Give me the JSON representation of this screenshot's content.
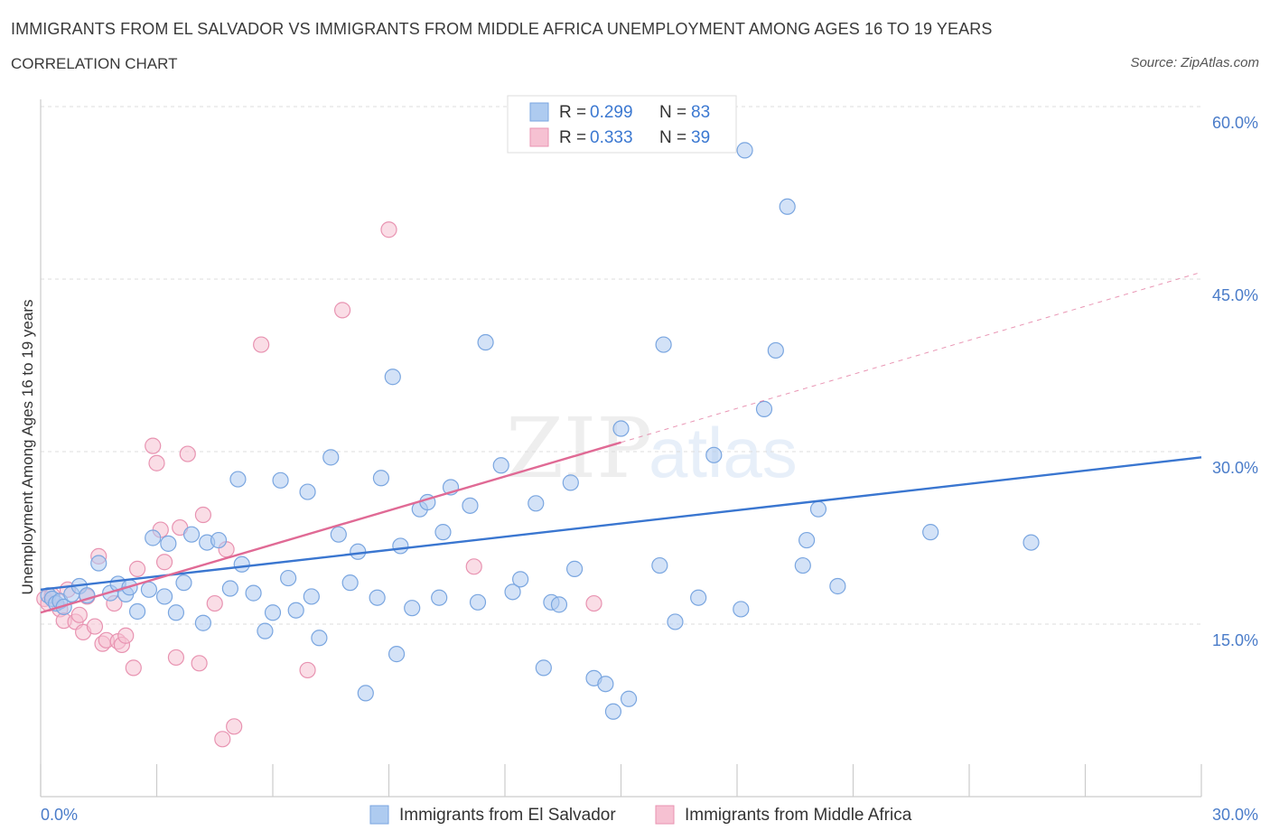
{
  "header": {
    "title": "IMMIGRANTS FROM EL SALVADOR VS IMMIGRANTS FROM MIDDLE AFRICA UNEMPLOYMENT AMONG AGES 16 TO 19 YEARS",
    "subtitle": "CORRELATION CHART",
    "source": "Source: ZipAtlas.com"
  },
  "legend_top": {
    "r_label": "R =",
    "n_label": "N =",
    "rows": [
      {
        "r": "0.299",
        "n": "83"
      },
      {
        "r": "0.333",
        "n": "39"
      }
    ]
  },
  "legend_bottom": {
    "items": [
      "Immigrants from El Salvador",
      "Immigrants from Middle Africa"
    ]
  },
  "watermark": {
    "zip": "ZIP",
    "atlas": "atlas"
  },
  "colors": {
    "blue_fill": "#aecbf0",
    "blue_stroke": "#7aa6e0",
    "blue_line": "#3a76d0",
    "pink_fill": "#f6c1d2",
    "pink_stroke": "#e893b1",
    "pink_line": "#e06a95",
    "grid": "#dddddd",
    "tick_text": "#4a7cc9"
  },
  "chart_data": {
    "type": "scatter",
    "xlabel": "",
    "ylabel": "Unemployment Among Ages 16 to 19 years",
    "xlim": [
      0,
      30
    ],
    "ylim": [
      0,
      60
    ],
    "x_tick_labels": [
      "0.0%",
      "30.0%"
    ],
    "y_tick_labels": [
      "15.0%",
      "30.0%",
      "45.0%",
      "60.0%"
    ],
    "y_ticks": [
      15,
      30,
      45,
      60
    ],
    "grid": true,
    "series": [
      {
        "name": "Immigrants from El Salvador",
        "r": 0.299,
        "n": 83,
        "trend": {
          "x0": 0,
          "y0": 18.0,
          "x1": 30,
          "y1": 29.5,
          "dashed_to": null
        },
        "points": [
          [
            0.2,
            17.5
          ],
          [
            0.3,
            17.2
          ],
          [
            0.4,
            16.8
          ],
          [
            0.5,
            17.0
          ],
          [
            0.6,
            16.5
          ],
          [
            0.8,
            17.6
          ],
          [
            1.0,
            18.3
          ],
          [
            1.2,
            17.5
          ],
          [
            1.5,
            20.3
          ],
          [
            1.8,
            17.7
          ],
          [
            2.0,
            18.5
          ],
          [
            2.2,
            17.6
          ],
          [
            2.3,
            18.2
          ],
          [
            2.5,
            16.1
          ],
          [
            2.8,
            18.0
          ],
          [
            2.9,
            22.5
          ],
          [
            3.2,
            17.4
          ],
          [
            3.3,
            22.0
          ],
          [
            3.5,
            16.0
          ],
          [
            3.7,
            18.6
          ],
          [
            3.9,
            22.8
          ],
          [
            4.2,
            15.1
          ],
          [
            4.3,
            22.1
          ],
          [
            4.6,
            22.3
          ],
          [
            4.9,
            18.1
          ],
          [
            5.1,
            27.6
          ],
          [
            5.2,
            20.2
          ],
          [
            5.5,
            17.7
          ],
          [
            5.8,
            14.4
          ],
          [
            6.0,
            16.0
          ],
          [
            6.2,
            27.5
          ],
          [
            6.4,
            19.0
          ],
          [
            6.6,
            16.2
          ],
          [
            6.9,
            26.5
          ],
          [
            7.0,
            17.4
          ],
          [
            7.2,
            13.8
          ],
          [
            7.5,
            29.5
          ],
          [
            7.7,
            22.8
          ],
          [
            8.0,
            18.6
          ],
          [
            8.2,
            21.3
          ],
          [
            8.4,
            9.0
          ],
          [
            8.7,
            17.3
          ],
          [
            8.8,
            27.7
          ],
          [
            9.1,
            36.5
          ],
          [
            9.2,
            12.4
          ],
          [
            9.3,
            21.8
          ],
          [
            9.6,
            16.4
          ],
          [
            9.8,
            25.0
          ],
          [
            10.0,
            25.6
          ],
          [
            10.3,
            17.3
          ],
          [
            10.4,
            23.0
          ],
          [
            10.6,
            26.9
          ],
          [
            11.1,
            25.3
          ],
          [
            11.3,
            16.9
          ],
          [
            11.5,
            39.5
          ],
          [
            11.9,
            28.8
          ],
          [
            12.2,
            17.8
          ],
          [
            12.4,
            18.9
          ],
          [
            12.8,
            25.5
          ],
          [
            13.0,
            11.2
          ],
          [
            13.2,
            16.9
          ],
          [
            13.4,
            16.7
          ],
          [
            13.7,
            27.3
          ],
          [
            13.8,
            19.8
          ],
          [
            14.3,
            10.3
          ],
          [
            14.6,
            9.8
          ],
          [
            14.8,
            7.4
          ],
          [
            15.0,
            32.0
          ],
          [
            15.2,
            8.5
          ],
          [
            16.0,
            20.1
          ],
          [
            16.1,
            39.3
          ],
          [
            16.4,
            15.2
          ],
          [
            17.0,
            17.3
          ],
          [
            17.4,
            29.7
          ],
          [
            18.1,
            16.3
          ],
          [
            18.2,
            56.2
          ],
          [
            18.7,
            33.7
          ],
          [
            19.0,
            38.8
          ],
          [
            19.3,
            51.3
          ],
          [
            19.7,
            20.1
          ],
          [
            19.8,
            22.3
          ],
          [
            20.1,
            25.0
          ],
          [
            20.6,
            18.3
          ],
          [
            23.0,
            23.0
          ],
          [
            25.6,
            22.1
          ]
        ]
      },
      {
        "name": "Immigrants from Middle Africa",
        "r": 0.333,
        "n": 39,
        "trend": {
          "x0": 0,
          "y0": 16.0,
          "x1": 15.0,
          "y1": 30.8,
          "dashed_to": {
            "x": 30,
            "y": 45.6
          }
        },
        "points": [
          [
            0.1,
            17.2
          ],
          [
            0.2,
            16.8
          ],
          [
            0.3,
            17.5
          ],
          [
            0.5,
            16.3
          ],
          [
            0.6,
            15.3
          ],
          [
            0.7,
            18.0
          ],
          [
            0.9,
            15.2
          ],
          [
            1.0,
            15.8
          ],
          [
            1.1,
            14.3
          ],
          [
            1.2,
            17.4
          ],
          [
            1.4,
            14.8
          ],
          [
            1.5,
            20.9
          ],
          [
            1.6,
            13.3
          ],
          [
            1.7,
            13.6
          ],
          [
            1.9,
            16.8
          ],
          [
            2.0,
            13.5
          ],
          [
            2.1,
            13.2
          ],
          [
            2.2,
            14.0
          ],
          [
            2.4,
            11.2
          ],
          [
            2.5,
            19.8
          ],
          [
            2.9,
            30.5
          ],
          [
            3.0,
            29.0
          ],
          [
            3.1,
            23.2
          ],
          [
            3.2,
            20.4
          ],
          [
            3.5,
            12.1
          ],
          [
            3.6,
            23.4
          ],
          [
            3.8,
            29.8
          ],
          [
            4.1,
            11.6
          ],
          [
            4.2,
            24.5
          ],
          [
            4.5,
            16.8
          ],
          [
            4.7,
            5.0
          ],
          [
            4.8,
            21.5
          ],
          [
            5.0,
            6.1
          ],
          [
            5.7,
            39.3
          ],
          [
            6.9,
            11.0
          ],
          [
            7.8,
            42.3
          ],
          [
            9.0,
            49.3
          ],
          [
            11.2,
            20.0
          ],
          [
            14.3,
            16.8
          ]
        ]
      }
    ]
  }
}
